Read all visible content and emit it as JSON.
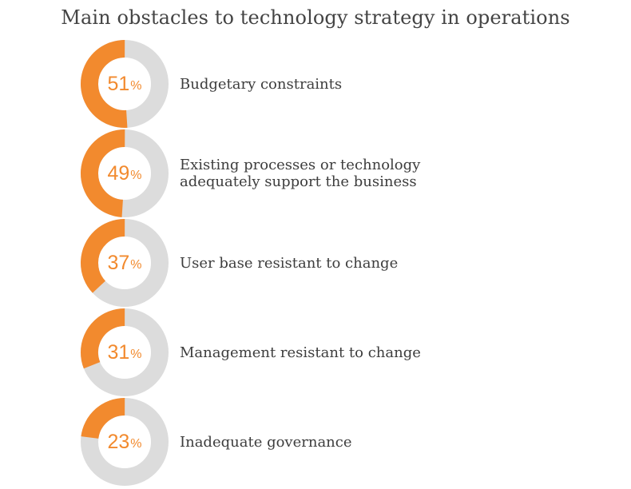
{
  "chart_data": {
    "type": "pie",
    "title": "Main obstacles to technology strategy in operations",
    "colors": {
      "value": "#f28a2e",
      "remainder": "#dcdcdc",
      "text": "#3d3d3d"
    },
    "items": [
      {
        "label": "Budgetary constraints",
        "value": 51,
        "value_text": "51",
        "unit": "%"
      },
      {
        "label": "Existing processes or technology\nadequately support the business",
        "value": 49,
        "value_text": "49",
        "unit": "%"
      },
      {
        "label": "User base resistant to change",
        "value": 37,
        "value_text": "37",
        "unit": "%"
      },
      {
        "label": "Management resistant to change",
        "value": 31,
        "value_text": "31",
        "unit": "%"
      },
      {
        "label": "Inadequate governance",
        "value": 23,
        "value_text": "23",
        "unit": "%"
      }
    ]
  }
}
